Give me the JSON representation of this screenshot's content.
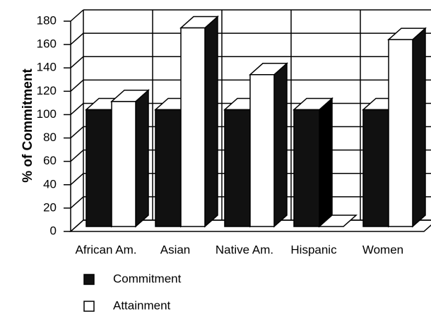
{
  "chart_data": {
    "type": "bar3d",
    "y_label": "% of Commitment",
    "categories": [
      "African Am.",
      "Asian",
      "Native Am.",
      "Hispanic",
      "Women"
    ],
    "series": [
      {
        "name": "Commitment",
        "color": "#111111",
        "values": [
          100,
          100,
          100,
          100,
          100
        ]
      },
      {
        "name": "Attainment",
        "color": "#ffffff",
        "values": [
          107,
          170,
          130,
          0,
          160
        ]
      }
    ],
    "ylim": [
      0,
      180
    ],
    "yticks": [
      0,
      20,
      40,
      60,
      80,
      100,
      120,
      140,
      160,
      180
    ],
    "grid": true,
    "legend": "bottom-left"
  }
}
